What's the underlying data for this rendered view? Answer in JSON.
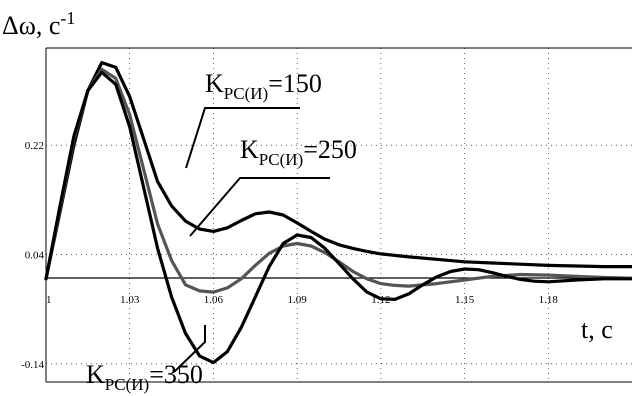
{
  "chart_data": {
    "type": "line",
    "ylabel": "Δω, с",
    "ylabel_sup": "-1",
    "xlabel": "t, с",
    "xlim": [
      1.0,
      1.21
    ],
    "ylim": [
      -0.17,
      0.38
    ],
    "grid": true,
    "x_ticks": [
      1.0,
      1.03,
      1.06,
      1.09,
      1.12,
      1.15,
      1.18
    ],
    "x_tick_labels": [
      "1",
      "1.03",
      "1.06",
      "1.09",
      "1.12",
      "1.15",
      "1.18"
    ],
    "y_ticks": [
      0.22,
      0.04,
      -0.14
    ],
    "y_tick_labels": [
      "0.22",
      "0.04",
      "-0.14"
    ],
    "series": [
      {
        "name": "KPC(И)=150",
        "label_main": "K",
        "label_sub": "PC(И)",
        "label_value": "=150",
        "color": "#000000",
        "x": [
          1.0,
          1.005,
          1.01,
          1.015,
          1.02,
          1.025,
          1.03,
          1.035,
          1.04,
          1.045,
          1.05,
          1.055,
          1.06,
          1.065,
          1.07,
          1.075,
          1.08,
          1.085,
          1.09,
          1.095,
          1.1,
          1.105,
          1.11,
          1.115,
          1.12,
          1.13,
          1.14,
          1.15,
          1.16,
          1.17,
          1.18,
          1.19,
          1.2,
          1.21
        ],
        "y": [
          0.0,
          0.11,
          0.22,
          0.31,
          0.356,
          0.348,
          0.3,
          0.23,
          0.16,
          0.12,
          0.095,
          0.082,
          0.078,
          0.084,
          0.096,
          0.107,
          0.11,
          0.105,
          0.092,
          0.078,
          0.065,
          0.056,
          0.05,
          0.045,
          0.041,
          0.036,
          0.032,
          0.028,
          0.026,
          0.024,
          0.022,
          0.021,
          0.02,
          0.02
        ]
      },
      {
        "name": "KPC(И)=250",
        "label_main": "K",
        "label_sub": "PC(И)",
        "label_value": "=250",
        "color": "#555555",
        "x": [
          1.0,
          1.005,
          1.01,
          1.015,
          1.02,
          1.025,
          1.03,
          1.035,
          1.04,
          1.045,
          1.05,
          1.055,
          1.06,
          1.065,
          1.07,
          1.075,
          1.08,
          1.085,
          1.09,
          1.095,
          1.1,
          1.105,
          1.11,
          1.115,
          1.12,
          1.125,
          1.13,
          1.14,
          1.15,
          1.16,
          1.17,
          1.18,
          1.19,
          1.2,
          1.21
        ],
        "y": [
          0.0,
          0.115,
          0.23,
          0.31,
          0.345,
          0.33,
          0.27,
          0.18,
          0.09,
          0.03,
          -0.01,
          -0.02,
          -0.022,
          -0.015,
          0.0,
          0.022,
          0.042,
          0.054,
          0.058,
          0.054,
          0.043,
          0.028,
          0.012,
          0.0,
          -0.008,
          -0.011,
          -0.012,
          -0.008,
          -0.002,
          0.004,
          0.007,
          0.006,
          0.004,
          0.002,
          0.001
        ]
      },
      {
        "name": "KPC(И)=350",
        "label_main": "K",
        "label_sub": "PC(И)",
        "label_value": "=350",
        "color": "#000000",
        "x": [
          1.0,
          1.005,
          1.01,
          1.015,
          1.02,
          1.025,
          1.03,
          1.035,
          1.04,
          1.045,
          1.05,
          1.055,
          1.06,
          1.065,
          1.07,
          1.075,
          1.08,
          1.085,
          1.09,
          1.095,
          1.1,
          1.105,
          1.11,
          1.115,
          1.12,
          1.125,
          1.13,
          1.135,
          1.14,
          1.145,
          1.15,
          1.155,
          1.16,
          1.165,
          1.17,
          1.175,
          1.18,
          1.19,
          1.2,
          1.21
        ],
        "y": [
          0.0,
          0.12,
          0.235,
          0.31,
          0.34,
          0.32,
          0.25,
          0.15,
          0.05,
          -0.03,
          -0.09,
          -0.127,
          -0.138,
          -0.12,
          -0.08,
          -0.03,
          0.02,
          0.058,
          0.072,
          0.068,
          0.05,
          0.025,
          0.0,
          -0.022,
          -0.033,
          -0.034,
          -0.025,
          -0.01,
          0.003,
          0.012,
          0.016,
          0.015,
          0.01,
          0.004,
          -0.001,
          -0.004,
          -0.005,
          -0.002,
          0.0,
          0.0
        ]
      }
    ]
  }
}
